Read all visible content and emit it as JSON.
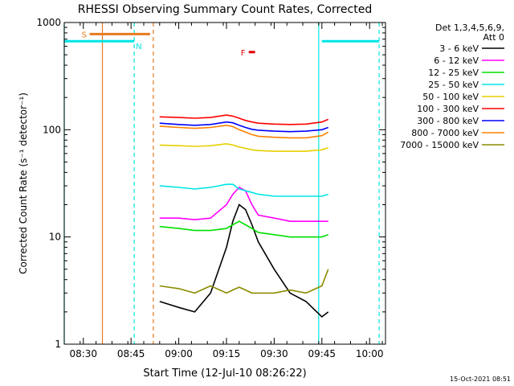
{
  "chart_data": {
    "type": "line",
    "title": "RHESSI Observing Summary Count Rates, Corrected",
    "xlabel": "Start Time (12-Jul-10 08:26:22)",
    "ylabel": "Corrected Count Rate (s⁻¹ detector⁻¹)",
    "yscale": "log",
    "xlim": [
      "08:24",
      "10:05"
    ],
    "ylim": [
      1,
      1000
    ],
    "x_ticks": [
      "08:30",
      "08:45",
      "09:00",
      "09:15",
      "09:30",
      "09:45",
      "10:00"
    ],
    "y_ticks": [
      "1",
      "10",
      "100",
      "1000"
    ],
    "grid": false,
    "legend_placement": "top-right",
    "legend_header": [
      "Det 1,3,4,5,6,9,",
      "Att 0"
    ],
    "timestamp": "15-Oct-2021 08:51",
    "annotations": [
      {
        "label": "S",
        "color": "#e87a1e",
        "x_start": "08:32",
        "x_end": "08:51",
        "y": 780
      },
      {
        "label": "N",
        "color": "#00e5e5",
        "x_start": "08:24",
        "x_end": "08:46",
        "y": 670
      },
      {
        "label": "F",
        "color": "#e00000",
        "x_start": "09:22",
        "x_end": "09:24",
        "y": 530
      },
      {
        "label": "",
        "color": "#00e5e5",
        "x_start": "09:45",
        "x_end": "10:03",
        "y": 670
      }
    ],
    "vertical_lines": [
      {
        "x": "08:24",
        "color": "#00e5e5",
        "style": "solid"
      },
      {
        "x": "08:36",
        "color": "#e87a1e",
        "style": "solid"
      },
      {
        "x": "08:46",
        "color": "#00e5e5",
        "style": "dashed"
      },
      {
        "x": "08:52",
        "color": "#e87a1e",
        "style": "dashed"
      },
      {
        "x": "09:44",
        "color": "#00e5e5",
        "style": "solid"
      },
      {
        "x": "10:03",
        "color": "#00e5e5",
        "style": "dashed"
      }
    ],
    "x": [
      "08:54",
      "09:00",
      "09:05",
      "09:10",
      "09:15",
      "09:17",
      "09:19",
      "09:21",
      "09:23",
      "09:25",
      "09:30",
      "09:35",
      "09:40",
      "09:45",
      "09:47"
    ],
    "series": [
      {
        "name": "3 - 6 keV",
        "color": "#000000",
        "values": [
          2.5,
          2.2,
          2.0,
          3.0,
          8.0,
          14.0,
          20.0,
          18.0,
          13.0,
          9.0,
          5.0,
          3.0,
          2.5,
          1.8,
          2.0
        ]
      },
      {
        "name": "6 - 12 keV",
        "color": "#ff00ff",
        "values": [
          15,
          15,
          14.5,
          15,
          20,
          25,
          29,
          27,
          20,
          16,
          15,
          14,
          14,
          14,
          14
        ]
      },
      {
        "name": "12 - 25 keV",
        "color": "#00e000",
        "values": [
          12.5,
          12,
          11.5,
          11.5,
          12,
          13,
          14,
          13,
          12,
          11,
          10.5,
          10,
          10,
          10,
          10.5
        ]
      },
      {
        "name": "25 - 50 keV",
        "color": "#00e5e5",
        "values": [
          30,
          29,
          28,
          29,
          31,
          31,
          28,
          27,
          26,
          25,
          24,
          24,
          24,
          24,
          25
        ]
      },
      {
        "name": "50 - 100 keV",
        "color": "#e6d000",
        "values": [
          72,
          71,
          70,
          71,
          74,
          72,
          69,
          67,
          65,
          64,
          63,
          63,
          63,
          65,
          68
        ]
      },
      {
        "name": "100 - 300 keV",
        "color": "#ff0000",
        "values": [
          132,
          130,
          128,
          130,
          137,
          134,
          128,
          122,
          118,
          115,
          113,
          112,
          113,
          118,
          125
        ]
      },
      {
        "name": "300 - 800 keV",
        "color": "#0000ff",
        "values": [
          115,
          112,
          110,
          112,
          118,
          116,
          110,
          105,
          101,
          99,
          97,
          96,
          97,
          100,
          105
        ]
      },
      {
        "name": "800 - 7000 keV",
        "color": "#ff8000",
        "values": [
          108,
          105,
          103,
          105,
          110,
          107,
          100,
          95,
          90,
          87,
          85,
          84,
          84,
          88,
          95
        ]
      },
      {
        "name": "7000 - 15000 keV",
        "color": "#8b8b00",
        "values": [
          3.5,
          3.3,
          3.0,
          3.5,
          3.0,
          3.2,
          3.4,
          3.2,
          3.0,
          3.0,
          3.0,
          3.2,
          3.0,
          3.5,
          5.0
        ]
      }
    ]
  }
}
